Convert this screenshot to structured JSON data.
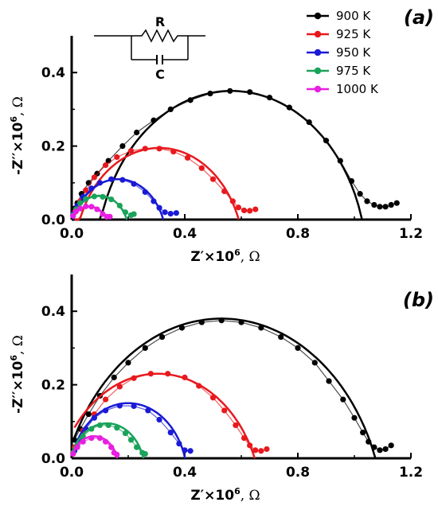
{
  "legend": [
    "900 K",
    "925 K",
    "950 K",
    "975 K",
    "1000 K"
  ],
  "colors": {
    "900 K": "#000000",
    "925 K": "#e8191e",
    "950 K": "#1a1ad6",
    "975 K": "#1aa35a",
    "1000 K": "#e81ee0"
  },
  "circuit": {
    "R": "R",
    "C": "C"
  },
  "axes": {
    "x_prefix": "Z′×10",
    "y_prefix": "-Z′′×10",
    "exponent": "6",
    "unit": ", Ω"
  },
  "chart_data": [
    {
      "type": "scatter",
      "panel": "(a)",
      "xlabel": "Z′×10⁶, Ω",
      "ylabel": "-Z′′×10⁶, Ω",
      "xlim": [
        0,
        1.2
      ],
      "ylim": [
        0,
        0.5
      ],
      "xticks": [
        "0.0",
        "0.4",
        "0.8",
        "1.2"
      ],
      "yticks": [
        "0.0",
        "0.2",
        "0.4"
      ],
      "series": [
        {
          "name": "900 K",
          "color": "#000000",
          "arc": {
            "center": 0.565,
            "radius": 0.48,
            "center_y": -0.13
          },
          "points": [
            [
              0.01,
              0.03
            ],
            [
              0.02,
              0.045
            ],
            [
              0.035,
              0.07
            ],
            [
              0.06,
              0.1
            ],
            [
              0.09,
              0.125
            ],
            [
              0.13,
              0.16
            ],
            [
              0.18,
              0.2
            ],
            [
              0.23,
              0.237
            ],
            [
              0.29,
              0.27
            ],
            [
              0.35,
              0.3
            ],
            [
              0.42,
              0.325
            ],
            [
              0.49,
              0.343
            ],
            [
              0.56,
              0.35
            ],
            [
              0.63,
              0.347
            ],
            [
              0.7,
              0.332
            ],
            [
              0.77,
              0.305
            ],
            [
              0.84,
              0.265
            ],
            [
              0.9,
              0.215
            ],
            [
              0.95,
              0.16
            ],
            [
              0.99,
              0.105
            ],
            [
              1.02,
              0.07
            ],
            [
              1.045,
              0.05
            ],
            [
              1.07,
              0.04
            ],
            [
              1.09,
              0.035
            ],
            [
              1.11,
              0.035
            ],
            [
              1.13,
              0.04
            ],
            [
              1.15,
              0.045
            ]
          ]
        },
        {
          "name": "925 K",
          "color": "#e8191e",
          "arc": {
            "center": 0.31,
            "radius": 0.3,
            "center_y": -0.105
          },
          "points": [
            [
              0.01,
              0.02
            ],
            [
              0.03,
              0.05
            ],
            [
              0.05,
              0.08
            ],
            [
              0.08,
              0.115
            ],
            [
              0.12,
              0.148
            ],
            [
              0.16,
              0.17
            ],
            [
              0.21,
              0.187
            ],
            [
              0.26,
              0.193
            ],
            [
              0.31,
              0.193
            ],
            [
              0.36,
              0.185
            ],
            [
              0.41,
              0.168
            ],
            [
              0.46,
              0.14
            ],
            [
              0.5,
              0.11
            ],
            [
              0.54,
              0.077
            ],
            [
              0.57,
              0.05
            ],
            [
              0.59,
              0.033
            ],
            [
              0.61,
              0.025
            ],
            [
              0.63,
              0.024
            ],
            [
              0.65,
              0.028
            ]
          ]
        },
        {
          "name": "950 K",
          "color": "#1a1ad6",
          "arc": {
            "center": 0.165,
            "radius": 0.17,
            "center_y": -0.06
          },
          "points": [
            [
              0.005,
              0.015
            ],
            [
              0.02,
              0.038
            ],
            [
              0.04,
              0.062
            ],
            [
              0.07,
              0.085
            ],
            [
              0.1,
              0.1
            ],
            [
              0.14,
              0.11
            ],
            [
              0.18,
              0.108
            ],
            [
              0.22,
              0.097
            ],
            [
              0.26,
              0.075
            ],
            [
              0.29,
              0.05
            ],
            [
              0.31,
              0.032
            ],
            [
              0.33,
              0.02
            ],
            [
              0.35,
              0.016
            ],
            [
              0.37,
              0.018
            ]
          ]
        },
        {
          "name": "975 K",
          "color": "#1aa35a",
          "arc": {
            "center": 0.098,
            "radius": 0.105,
            "center_y": -0.04
          },
          "points": [
            [
              0.005,
              0.012
            ],
            [
              0.015,
              0.028
            ],
            [
              0.03,
              0.045
            ],
            [
              0.05,
              0.056
            ],
            [
              0.08,
              0.063
            ],
            [
              0.11,
              0.062
            ],
            [
              0.14,
              0.055
            ],
            [
              0.17,
              0.038
            ],
            [
              0.19,
              0.02
            ],
            [
              0.21,
              0.012
            ],
            [
              0.22,
              0.015
            ]
          ]
        },
        {
          "name": "1000 K",
          "color": "#e81ee0",
          "arc": {
            "center": 0.062,
            "radius": 0.072,
            "center_y": -0.036
          },
          "points": [
            [
              0.005,
              0.01
            ],
            [
              0.015,
              0.022
            ],
            [
              0.03,
              0.03
            ],
            [
              0.05,
              0.036
            ],
            [
              0.07,
              0.035
            ],
            [
              0.09,
              0.028
            ],
            [
              0.11,
              0.015
            ],
            [
              0.125,
              0.008
            ],
            [
              0.135,
              0.008
            ]
          ]
        }
      ]
    },
    {
      "type": "scatter",
      "panel": "(b)",
      "xlabel": "Z′×10⁶, Ω",
      "ylabel": "-Z′′×10⁶, Ω",
      "xlim": [
        0,
        1.2
      ],
      "ylim": [
        0,
        0.5
      ],
      "xticks": [
        "0.0",
        "0.4",
        "0.8",
        "1.2"
      ],
      "yticks": [
        "0.0",
        "0.2",
        "0.4"
      ],
      "series": [
        {
          "name": "900 K",
          "color": "#000000",
          "arc": {
            "center": 0.53,
            "radius": 0.58,
            "center_y": -0.2
          },
          "points": [
            [
              0.01,
              0.05
            ],
            [
              0.03,
              0.08
            ],
            [
              0.06,
              0.12
            ],
            [
              0.1,
              0.17
            ],
            [
              0.15,
              0.22
            ],
            [
              0.2,
              0.26
            ],
            [
              0.26,
              0.3
            ],
            [
              0.32,
              0.33
            ],
            [
              0.39,
              0.355
            ],
            [
              0.46,
              0.37
            ],
            [
              0.53,
              0.375
            ],
            [
              0.6,
              0.37
            ],
            [
              0.67,
              0.355
            ],
            [
              0.74,
              0.33
            ],
            [
              0.8,
              0.3
            ],
            [
              0.86,
              0.26
            ],
            [
              0.91,
              0.21
            ],
            [
              0.96,
              0.16
            ],
            [
              1.0,
              0.11
            ],
            [
              1.03,
              0.07
            ],
            [
              1.05,
              0.045
            ],
            [
              1.07,
              0.03
            ],
            [
              1.09,
              0.022
            ],
            [
              1.11,
              0.025
            ],
            [
              1.13,
              0.035
            ]
          ]
        },
        {
          "name": "925 K",
          "color": "#e8191e",
          "arc": {
            "center": 0.305,
            "radius": 0.37,
            "center_y": -0.14
          },
          "points": [
            [
              0.01,
              0.03
            ],
            [
              0.04,
              0.075
            ],
            [
              0.08,
              0.12
            ],
            [
              0.12,
              0.16
            ],
            [
              0.17,
              0.195
            ],
            [
              0.22,
              0.218
            ],
            [
              0.28,
              0.23
            ],
            [
              0.34,
              0.23
            ],
            [
              0.4,
              0.22
            ],
            [
              0.45,
              0.197
            ],
            [
              0.5,
              0.165
            ],
            [
              0.54,
              0.13
            ],
            [
              0.58,
              0.09
            ],
            [
              0.61,
              0.055
            ],
            [
              0.63,
              0.035
            ],
            [
              0.65,
              0.022
            ],
            [
              0.67,
              0.02
            ],
            [
              0.69,
              0.025
            ]
          ]
        },
        {
          "name": "950 K",
          "color": "#1a1ad6",
          "arc": {
            "center": 0.2,
            "radius": 0.21,
            "center_y": -0.06
          },
          "points": [
            [
              0.01,
              0.02
            ],
            [
              0.03,
              0.05
            ],
            [
              0.05,
              0.08
            ],
            [
              0.08,
              0.11
            ],
            [
              0.12,
              0.13
            ],
            [
              0.17,
              0.143
            ],
            [
              0.22,
              0.142
            ],
            [
              0.27,
              0.13
            ],
            [
              0.31,
              0.105
            ],
            [
              0.35,
              0.07
            ],
            [
              0.38,
              0.04
            ],
            [
              0.4,
              0.022
            ],
            [
              0.42,
              0.02
            ]
          ]
        },
        {
          "name": "975 K",
          "color": "#1aa35a",
          "arc": {
            "center": 0.125,
            "radius": 0.135,
            "center_y": -0.04
          },
          "points": [
            [
              0.005,
              0.015
            ],
            [
              0.02,
              0.035
            ],
            [
              0.04,
              0.06
            ],
            [
              0.07,
              0.08
            ],
            [
              0.1,
              0.09
            ],
            [
              0.13,
              0.09
            ],
            [
              0.16,
              0.083
            ],
            [
              0.19,
              0.068
            ],
            [
              0.21,
              0.05
            ],
            [
              0.23,
              0.03
            ],
            [
              0.25,
              0.015
            ],
            [
              0.26,
              0.012
            ]
          ]
        },
        {
          "name": "1000 K",
          "color": "#e81ee0",
          "arc": {
            "center": 0.08,
            "radius": 0.085,
            "center_y": -0.025
          },
          "points": [
            [
              0.005,
              0.012
            ],
            [
              0.02,
              0.03
            ],
            [
              0.04,
              0.045
            ],
            [
              0.07,
              0.055
            ],
            [
              0.1,
              0.055
            ],
            [
              0.12,
              0.045
            ],
            [
              0.14,
              0.03
            ],
            [
              0.15,
              0.015
            ],
            [
              0.16,
              0.01
            ]
          ]
        }
      ]
    }
  ]
}
